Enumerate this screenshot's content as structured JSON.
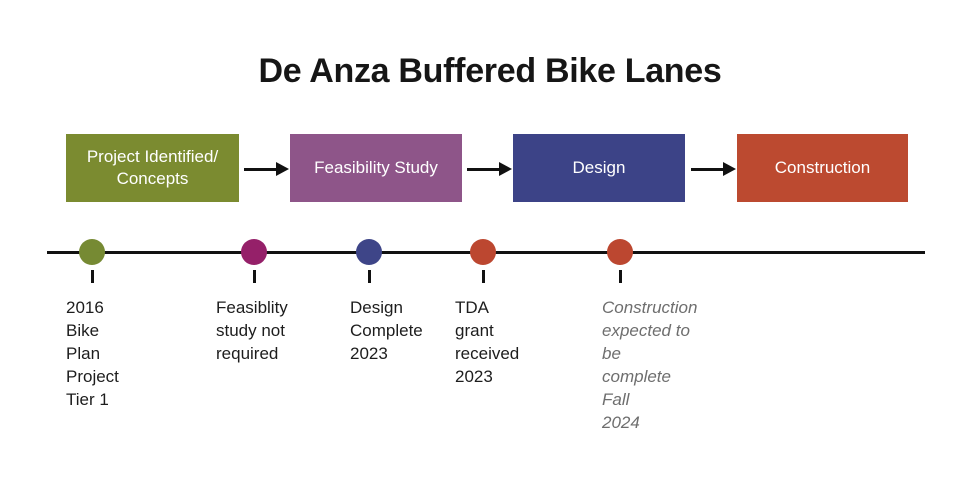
{
  "title": "De Anza Buffered Bike Lanes",
  "stages": [
    {
      "label": "Project Identified/\nConcepts",
      "color": "#7b8b30"
    },
    {
      "label": "Feasibility Study",
      "color": "#8e5589"
    },
    {
      "label": "Design",
      "color": "#3c4387"
    },
    {
      "label": "Construction",
      "color": "#bc4a30"
    }
  ],
  "arrow_color": "#111111",
  "timeline": {
    "line_color": "#111111",
    "milestones": [
      {
        "label": "2016 Bike\nPlan Project\nTier 1",
        "dot_color": "#768a33",
        "text_style": "normal",
        "text_color": "#1d1d1d"
      },
      {
        "label": "Feasiblity\nstudy not\nrequired",
        "dot_color": "#952069",
        "text_style": "normal",
        "text_color": "#1d1d1d"
      },
      {
        "label": "Design\nComplete\n2023",
        "dot_color": "#3e4588",
        "text_style": "normal",
        "text_color": "#1d1d1d"
      },
      {
        "label": "TDA grant\nreceived 2023",
        "dot_color": "#bc4730",
        "text_style": "normal",
        "text_color": "#1d1d1d"
      },
      {
        "label": "Construction\nexpected to be\ncomplete Fall\n2024",
        "dot_color": "#bc4730",
        "text_style": "italic",
        "text_color": "#6e6e6e"
      }
    ]
  }
}
